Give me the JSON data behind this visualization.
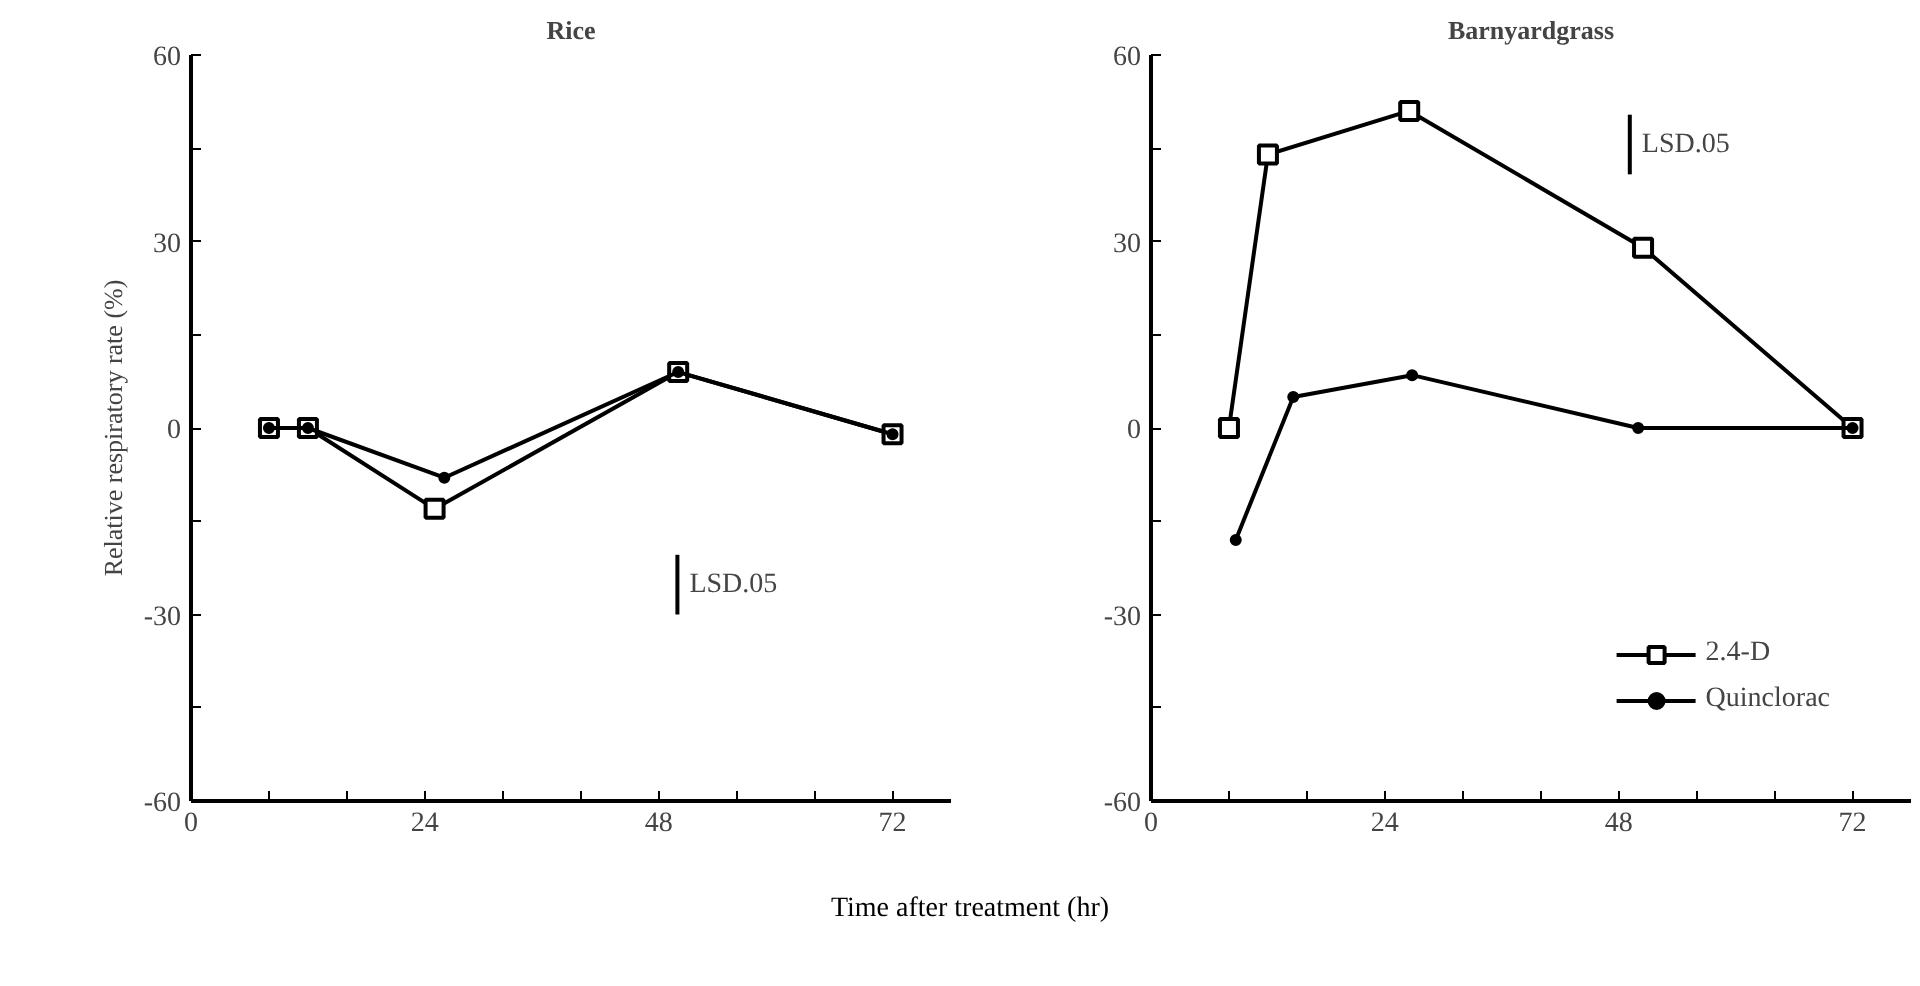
{
  "chart_data": [
    {
      "type": "line",
      "title": "Rice",
      "xlabel": "Time after treatment (hr)",
      "ylabel": "Relative respiratory rate (%)",
      "xlim": [
        0,
        78
      ],
      "ylim": [
        -60,
        60
      ],
      "xticks": [
        0,
        {
          "value": 8,
          "label": null
        },
        {
          "value": 16,
          "label": null
        },
        24,
        {
          "value": 32,
          "label": null
        },
        {
          "value": 40,
          "label": null
        },
        48,
        {
          "value": 56,
          "label": null
        },
        {
          "value": 64,
          "label": null
        },
        72
      ],
      "yticks": [
        -60,
        {
          "value": -45,
          "label": null
        },
        -30,
        {
          "value": -15,
          "label": null
        },
        0,
        {
          "value": 15,
          "label": null
        },
        30,
        {
          "value": 45,
          "label": null
        },
        60
      ],
      "grid": false,
      "legend": false,
      "line_style": "solid",
      "series": [
        {
          "color": "#000000",
          "marker": "square",
          "x": [
            8,
            12,
            25,
            50,
            72
          ],
          "values": [
            0,
            0,
            -13,
            9,
            -1
          ]
        },
        {
          "color": "#000000",
          "marker": "circle",
          "x": [
            8,
            12,
            26,
            50,
            72
          ],
          "values": [
            0,
            0,
            -8,
            9,
            -1
          ]
        }
      ],
      "annotations": [
        "LSD.05"
      ]
    },
    {
      "type": "line",
      "title": "Barnyardgrass",
      "xlim": [
        0,
        78
      ],
      "ylim": [
        -60,
        60
      ],
      "xticks": [
        0,
        {
          "value": 8,
          "label": null
        },
        {
          "value": 16,
          "label": null
        },
        24,
        {
          "value": 32,
          "label": null
        },
        {
          "value": 40,
          "label": null
        },
        48,
        {
          "value": 56,
          "label": null
        },
        {
          "value": 64,
          "label": null
        },
        72
      ],
      "yticks": [
        -60,
        {
          "value": -45,
          "label": null
        },
        -30,
        {
          "value": -15,
          "label": null
        },
        0,
        {
          "value": 15,
          "label": null
        },
        30,
        {
          "value": 45,
          "label": null
        },
        60
      ],
      "grid": false,
      "legend": "bottom right",
      "line_style": "solid",
      "series": [
        {
          "name": "2.4-D",
          "color": "#000000",
          "marker": "square",
          "x": [
            8,
            12,
            26.5,
            50.5,
            72
          ],
          "values": [
            0,
            44,
            51,
            29,
            0
          ]
        },
        {
          "name": "Quinclorac",
          "color": "#000000",
          "marker": "circle",
          "x": [
            8.7,
            14.6,
            26.8,
            50,
            72
          ],
          "values": [
            -18,
            5,
            8.5,
            0,
            0
          ]
        }
      ],
      "annotations": [
        "LSD.05"
      ]
    }
  ]
}
